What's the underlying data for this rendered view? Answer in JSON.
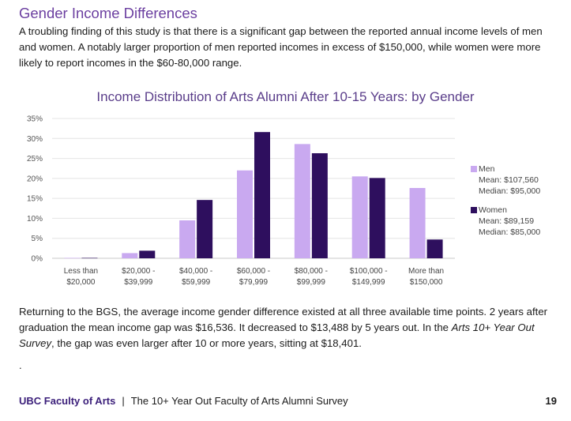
{
  "header": {
    "title": "Gender Income Differences",
    "intro": "A troubling finding of this study is that there is a significant gap between the reported annual income levels of men and women. A notably larger proportion of men reported incomes in excess of $150,000, while women were more likely to report incomes in the $60-80,000 range."
  },
  "chart_data": {
    "type": "bar",
    "title": "Income Distribution of Arts Alumni After 10-15 Years: by Gender",
    "categories": [
      [
        "Less than",
        "$20,000"
      ],
      [
        "$20,000 -",
        "$39,999"
      ],
      [
        "$40,000 -",
        "$59,999"
      ],
      [
        "$60,000 -",
        "$79,999"
      ],
      [
        "$80,000 -",
        "$99,999"
      ],
      [
        "$100,000 -",
        "$149,999"
      ],
      [
        "More than",
        "$150,000"
      ]
    ],
    "series": [
      {
        "name": "Men",
        "color": "#c9a9f0",
        "values": [
          0.1,
          1.3,
          9.5,
          22.0,
          28.6,
          20.5,
          17.6
        ],
        "notes": [
          "Mean: $107,560",
          "Median: $95,000"
        ]
      },
      {
        "name": "Women",
        "color": "#2e0f5e",
        "values": [
          0.1,
          1.9,
          14.6,
          31.6,
          26.3,
          20.1,
          4.7
        ],
        "notes": [
          "Mean: $89,159",
          "Median: $85,000"
        ]
      }
    ],
    "ylim": [
      0,
      35
    ],
    "yticks": [
      0,
      5,
      10,
      15,
      20,
      25,
      30,
      35
    ],
    "ytick_labels": [
      "0%",
      "5%",
      "10%",
      "15%",
      "20%",
      "25%",
      "30%",
      "35%"
    ],
    "grid": true,
    "legend_position": "right"
  },
  "body": {
    "paragraph_pre": "Returning to the BGS, the average income gender difference existed at all three available time points. 2 years after graduation the mean income gap was $16,536. It decreased to $13,488 by 5 years out. In the ",
    "paragraph_em": "Arts 10+ Year Out Survey",
    "paragraph_post": ", the gap was even larger after 10 or more years, sitting at $18,401.",
    "dot": "."
  },
  "footer": {
    "brand": "UBC Faculty of Arts",
    "separator": "|",
    "subtitle": "The 10+ Year Out Faculty of Arts Alumni Survey",
    "page": "19"
  }
}
